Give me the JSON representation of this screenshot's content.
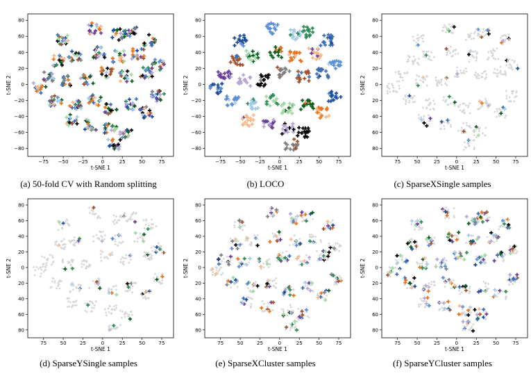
{
  "figure": {
    "background_color": "#d3d3d3",
    "series_colors": [
      "#1f4e99",
      "#5a8fd6",
      "#a6cbe8",
      "#2e8b57",
      "#9fd8a0",
      "#0b5d1e",
      "#e8741c",
      "#f5b98b",
      "#6a3d9a",
      "#b6a6d8",
      "#000000",
      "#7f7f7f",
      "#a0522d",
      "#3c6fb6"
    ]
  },
  "chart_data": [
    {
      "type": "scatter",
      "panel_id": "a",
      "caption": "(a) 50-fold CV with Random splitting",
      "xlabel": "t-SNE 1",
      "ylabel": "t-SNE 2",
      "xticks": [
        "−75",
        "−50",
        "−25",
        "0",
        "25",
        "50",
        "75"
      ],
      "yticks": [
        "80",
        "60",
        "40",
        "20",
        "0",
        "−20",
        "−40",
        "−60",
        "−80"
      ],
      "xlim": [
        -95,
        90
      ],
      "ylim": [
        -90,
        88
      ],
      "marker": "plus",
      "highlight_fraction": 1.0
    },
    {
      "type": "scatter",
      "panel_id": "b",
      "caption": "(b) LOCO",
      "xlabel": "t-SNE 1",
      "ylabel": "t-SNE 2",
      "xticks": [
        "−75",
        "−50",
        "−25",
        "0",
        "25",
        "50",
        "75"
      ],
      "yticks": [
        "80",
        "60",
        "40",
        "20",
        "0",
        "−20",
        "−40",
        "−60",
        "−80"
      ],
      "xlim": [
        -95,
        90
      ],
      "ylim": [
        -90,
        88
      ],
      "marker": "plus",
      "highlight_fraction": 1.0
    },
    {
      "type": "scatter",
      "panel_id": "c",
      "caption": "(c) SparseXSingle samples",
      "xlabel": "t-SNE 1",
      "ylabel": "t-SNE 2",
      "xticks": [
        "75",
        "50",
        "25",
        "0",
        "25",
        "50",
        "75"
      ],
      "yticks": [
        "80",
        "60",
        "40",
        "20",
        "0",
        "20",
        "40",
        "60",
        "80"
      ],
      "xlim": [
        -95,
        90
      ],
      "ylim": [
        -90,
        88
      ],
      "marker": "plus",
      "highlight_fraction": 0.08
    },
    {
      "type": "scatter",
      "panel_id": "d",
      "caption": "(d) SparseYSingle samples",
      "xlabel": "t-SNE 1",
      "ylabel": "t-SNE 2",
      "xticks": [
        "75",
        "50",
        "25",
        "0",
        "25",
        "50",
        "75"
      ],
      "yticks": [
        "80",
        "60",
        "40",
        "20",
        "0",
        "20",
        "40",
        "60",
        "80"
      ],
      "xlim": [
        -95,
        90
      ],
      "ylim": [
        -90,
        88
      ],
      "marker": "plus",
      "highlight_fraction": 0.08
    },
    {
      "type": "scatter",
      "panel_id": "e",
      "caption": "(e) SparseXCluster samples",
      "xlabel": "t-SNE 1",
      "ylabel": "t-SNE 2",
      "xticks": [
        "75",
        "50",
        "25",
        "0",
        "25",
        "50",
        "75"
      ],
      "yticks": [
        "80",
        "60",
        "40",
        "20",
        "0",
        "20",
        "40",
        "60",
        "80"
      ],
      "xlim": [
        -95,
        90
      ],
      "ylim": [
        -90,
        88
      ],
      "marker": "plus",
      "highlight_fraction": 0.35
    },
    {
      "type": "scatter",
      "panel_id": "f",
      "caption": "(f) SparseYCluster samples",
      "xlabel": "t-SNE 1",
      "ylabel": "t-SNE 2",
      "xticks": [
        "75",
        "50",
        "25",
        "0",
        "25",
        "50",
        "75"
      ],
      "yticks": [
        "80",
        "60",
        "40",
        "20",
        "0",
        "20",
        "40",
        "60",
        "80"
      ],
      "xlim": [
        -95,
        90
      ],
      "ylim": [
        -90,
        88
      ],
      "marker": "plus",
      "highlight_fraction": 0.4
    }
  ]
}
